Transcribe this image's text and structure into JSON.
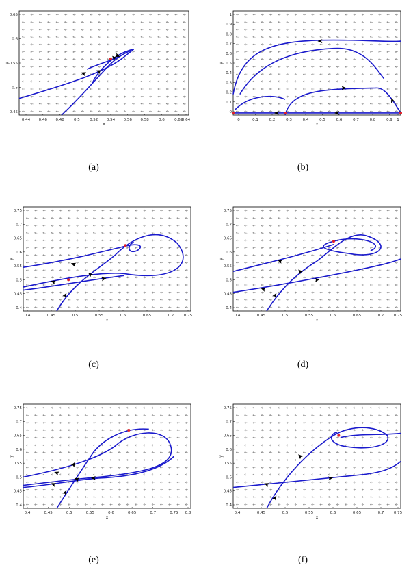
{
  "colors": {
    "trajectory": "#1a1acc",
    "field": "#8c8c8c",
    "equilibrium": "#e0202a",
    "frame": "#000000"
  },
  "panels": [
    {
      "id": "a",
      "caption": "(a)",
      "xlabel": "x",
      "ylabel": "y",
      "xticks": [
        "0.44",
        "0.46",
        "0.48",
        "0.5",
        "0.52",
        "0.54",
        "0.56",
        "0.58",
        "0.6",
        "0.62",
        "0.64"
      ],
      "yticks": [
        "0.45",
        "0.5",
        "0.55",
        "0.6",
        "0.65"
      ]
    },
    {
      "id": "b",
      "caption": "(b)",
      "xlabel": "x",
      "ylabel": "y",
      "xticks": [
        "0",
        "0.1",
        "0.2",
        "0.3",
        "0.4",
        "0.5",
        "0.6",
        "0.7",
        "0.8",
        "0.9",
        "1"
      ],
      "yticks": [
        "0",
        "0.1",
        "0.2",
        "0.3",
        "0.4",
        "0.5",
        "0.6",
        "0.7",
        "0.8",
        "0.9",
        "1"
      ]
    },
    {
      "id": "c",
      "caption": "(c)",
      "xlabel": "x",
      "ylabel": "y",
      "xticks": [
        "0.4",
        "0.45",
        "0.5",
        "0.55",
        "0.6",
        "0.65",
        "0.7",
        "0.75"
      ],
      "yticks": [
        "0.4",
        "0.45",
        "0.5",
        "0.55",
        "0.6",
        "0.65",
        "0.7",
        "0.75"
      ]
    },
    {
      "id": "d",
      "caption": "(d)",
      "xlabel": "x",
      "ylabel": "y",
      "xticks": [
        "0.4",
        "0.45",
        "0.5",
        "0.55",
        "0.6",
        "0.65",
        "0.7",
        "0.75"
      ],
      "yticks": [
        "0.4",
        "0.45",
        "0.5",
        "0.55",
        "0.6",
        "0.65",
        "0.7",
        "0.75"
      ]
    },
    {
      "id": "e",
      "caption": "(e)",
      "xlabel": "x",
      "ylabel": "y",
      "xticks": [
        "0.4",
        "0.45",
        "0.5",
        "0.55",
        "0.6",
        "0.65",
        "0.7",
        "0.75",
        "0.8"
      ],
      "yticks": [
        "0.4",
        "0.45",
        "0.5",
        "0.55",
        "0.6",
        "0.65",
        "0.7",
        "0.75"
      ]
    },
    {
      "id": "f",
      "caption": "(f)",
      "xlabel": "x",
      "ylabel": "y",
      "xticks": [
        "0.4",
        "0.45",
        "0.5",
        "0.55",
        "0.6",
        "0.65",
        "0.7",
        "0.75"
      ],
      "yticks": [
        "0.4",
        "0.45",
        "0.5",
        "0.55",
        "0.6",
        "0.65",
        "0.7",
        "0.75"
      ]
    }
  ]
}
